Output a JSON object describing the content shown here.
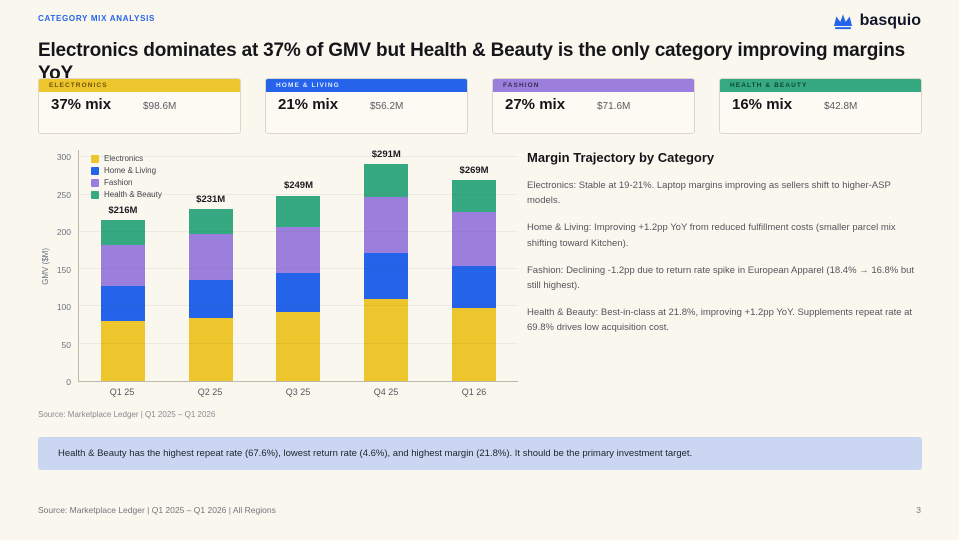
{
  "header": {
    "eyebrow": "CATEGORY MIX ANALYSIS",
    "title": "Electronics dominates at 37% of GMV but Health & Beauty is the only category improving margins YoY",
    "logo_text": "basquio",
    "brand_color": "#2563EB"
  },
  "kpi_cards": [
    {
      "category": "ELECTRONICS",
      "mix": "37% mix",
      "value": "$98.6M",
      "color": "#EDC62D",
      "label_color": "#6d5408"
    },
    {
      "category": "HOME & LIVING",
      "mix": "21% mix",
      "value": "$56.2M",
      "color": "#2563EB",
      "label_color": "#dfe8fc"
    },
    {
      "category": "FASHION",
      "mix": "27% mix",
      "value": "$71.6M",
      "color": "#9C7FDD",
      "label_color": "#3a2d55"
    },
    {
      "category": "HEALTH & BEAUTY",
      "mix": "16% mix",
      "value": "$42.8M",
      "color": "#36A983",
      "label_color": "#0e4632"
    }
  ],
  "chart_data": {
    "type": "bar",
    "stacked": true,
    "title": "",
    "xlabel": "",
    "ylabel": "GMV ($M)",
    "categories": [
      "Q1 25",
      "Q2 25",
      "Q3 25",
      "Q4 25",
      "Q1 26"
    ],
    "series": [
      {
        "name": "Electronics",
        "color": "#EDC62D",
        "values": [
          80,
          84,
          92,
          110,
          98.6
        ]
      },
      {
        "name": "Home & Living",
        "color": "#2563EB",
        "values": [
          48,
          51,
          53,
          62,
          56.2
        ]
      },
      {
        "name": "Fashion",
        "color": "#9C7FDD",
        "values": [
          55,
          62,
          62,
          75,
          71.6
        ]
      },
      {
        "name": "Health & Beauty",
        "color": "#36A983",
        "values": [
          33,
          34,
          42,
          44,
          42.8
        ]
      }
    ],
    "totals": [
      "$216M",
      "$231M",
      "$249M",
      "$291M",
      "$269M"
    ],
    "yticks": [
      0,
      50,
      100,
      150,
      200,
      250,
      300
    ],
    "ylim": [
      0,
      310
    ],
    "grid": true,
    "legend_position": "top-left"
  },
  "chart_source": "Source: Marketplace Ledger | Q1 2025 – Q1 2026",
  "margin_panel": {
    "title": "Margin Trajectory by Category",
    "paragraphs": [
      "Electronics: Stable at 19-21%. Laptop margins improving as sellers shift to higher-ASP models.",
      "Home & Living: Improving +1.2pp YoY from reduced fulfillment costs (smaller parcel mix shifting toward Kitchen).",
      "Fashion: Declining -1.2pp due to return rate spike in European Apparel (18.4% → 16.8% but still highest).",
      "Health & Beauty: Best-in-class at 21.8%, improving +1.2pp YoY. Supplements repeat rate at 69.8% drives low acquisition cost."
    ]
  },
  "callout": "Health & Beauty has the highest repeat rate (67.6%), lowest return rate (4.6%), and highest margin (21.8%). It should be the primary investment target.",
  "footer": {
    "source": "Source: Marketplace Ledger | Q1 2025 – Q1 2026 | All Regions",
    "page_number": "3"
  }
}
